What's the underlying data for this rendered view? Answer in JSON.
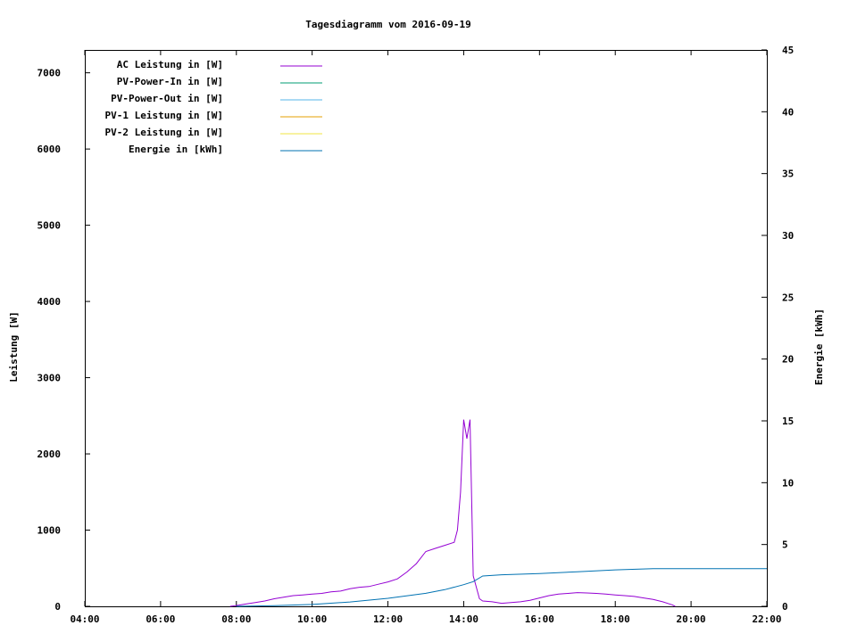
{
  "chart_data": {
    "type": "line",
    "title": "Tagesdiagramm vom 2016-09-19",
    "ylabel": "Leistung [W]",
    "y2label": "Energie [kWh]",
    "xlim": [
      "04:00",
      "22:00"
    ],
    "ylim": [
      0,
      7300
    ],
    "y2lim": [
      0,
      45
    ],
    "x_ticks": [
      "04:00",
      "06:00",
      "08:00",
      "10:00",
      "12:00",
      "14:00",
      "16:00",
      "18:00",
      "20:00",
      "22:00"
    ],
    "y_ticks": [
      0,
      1000,
      2000,
      3000,
      4000,
      5000,
      6000,
      7000
    ],
    "y2_ticks": [
      0,
      5,
      10,
      15,
      20,
      25,
      30,
      35,
      40,
      45
    ],
    "legend_position": "top-left",
    "grid": false,
    "series": [
      {
        "name": "AC Leistung in [W]",
        "axis": "y",
        "color": "#9400d3",
        "x": [
          "07:50",
          "08:00",
          "08:15",
          "08:30",
          "08:45",
          "09:00",
          "09:15",
          "09:30",
          "09:45",
          "10:00",
          "10:15",
          "10:30",
          "10:45",
          "11:00",
          "11:15",
          "11:30",
          "11:45",
          "12:00",
          "12:15",
          "12:30",
          "12:45",
          "13:00",
          "13:15",
          "13:30",
          "13:45",
          "13:50",
          "13:55",
          "14:00",
          "14:05",
          "14:10",
          "14:15",
          "14:20",
          "14:25",
          "14:30",
          "14:45",
          "15:00",
          "15:15",
          "15:30",
          "15:45",
          "16:00",
          "16:15",
          "16:30",
          "16:45",
          "17:00",
          "17:15",
          "17:30",
          "17:45",
          "18:00",
          "18:15",
          "18:30",
          "18:45",
          "19:00",
          "19:15",
          "19:30",
          "19:35"
        ],
        "values": [
          0,
          10,
          30,
          50,
          70,
          100,
          120,
          140,
          150,
          160,
          170,
          190,
          200,
          230,
          250,
          260,
          290,
          320,
          360,
          450,
          560,
          720,
          760,
          800,
          840,
          1000,
          1500,
          2450,
          2200,
          2450,
          400,
          250,
          100,
          70,
          60,
          40,
          50,
          60,
          80,
          110,
          140,
          160,
          170,
          180,
          175,
          170,
          160,
          150,
          140,
          130,
          110,
          90,
          60,
          20,
          0
        ]
      },
      {
        "name": "PV-Power-In in [W]",
        "axis": "y",
        "color": "#009e73",
        "x": [],
        "values": []
      },
      {
        "name": "PV-Power-Out in [W]",
        "axis": "y",
        "color": "#56b4e9",
        "x": [],
        "values": []
      },
      {
        "name": "PV-1 Leistung in [W]",
        "axis": "y",
        "color": "#e69f00",
        "x": [],
        "values": []
      },
      {
        "name": "PV-2 Leistung in [W]",
        "axis": "y",
        "color": "#f0e442",
        "x": [],
        "values": []
      },
      {
        "name": "Energie in [kWh]",
        "axis": "y2",
        "color": "#0072b2",
        "x": [
          "08:00",
          "09:00",
          "10:00",
          "11:00",
          "12:00",
          "13:00",
          "13:30",
          "14:00",
          "14:15",
          "14:30",
          "15:00",
          "16:00",
          "17:00",
          "18:00",
          "19:00",
          "20:00",
          "21:00",
          "22:00"
        ],
        "values": [
          0,
          0.05,
          0.15,
          0.35,
          0.65,
          1.05,
          1.35,
          1.75,
          2.0,
          2.45,
          2.55,
          2.65,
          2.8,
          2.95,
          3.05,
          3.05,
          3.05,
          3.05
        ]
      }
    ]
  }
}
